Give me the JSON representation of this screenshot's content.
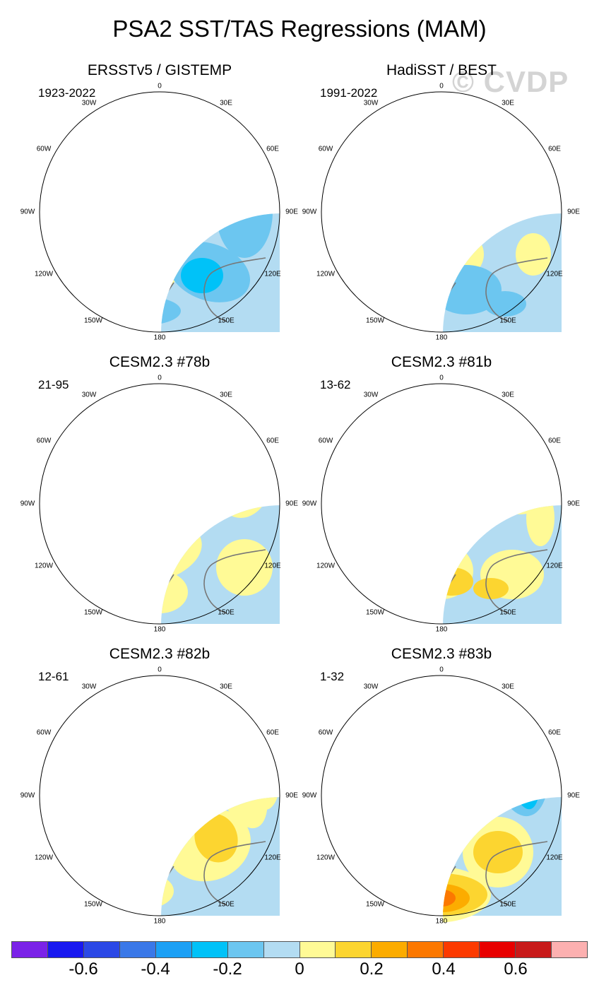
{
  "title": "PSA2 SST/TAS Regressions (MAM)",
  "watermark": "© CVDP",
  "lon_labels": {
    "top": "0",
    "n30e": "30E",
    "n60e": "60E",
    "e90": "90E",
    "s120e": "120E",
    "s150e": "150E",
    "bottom": "180",
    "s150w": "150W",
    "s120w": "120W",
    "w90": "90W",
    "n60w": "60W",
    "n30w": "30W"
  },
  "panels": [
    {
      "title": "ERSSTv5 / GISTEMP",
      "period": "1923-2022"
    },
    {
      "title": "HadiSST / BEST",
      "period": "1991-2022"
    },
    {
      "title": "CESM2.3 #78b",
      "period": "21-95"
    },
    {
      "title": "CESM2.3 #81b",
      "period": "13-62"
    },
    {
      "title": "CESM2.3 #82b",
      "period": "12-61"
    },
    {
      "title": "CESM2.3 #83b",
      "period": "1-32"
    }
  ],
  "colorbar": {
    "colors": [
      "#7b22e8",
      "#1818f0",
      "#2b48e6",
      "#3a78e8",
      "#1ca0f5",
      "#00c2f8",
      "#6cc6f0",
      "#b3dcf2",
      "#fffa96",
      "#fcd530",
      "#fcac00",
      "#fc7800",
      "#fc3a00",
      "#e80000",
      "#c81a1a",
      "#fcb0b0"
    ],
    "tick_labels": [
      "-0.6",
      "-0.4",
      "-0.2",
      "0",
      "0.2",
      "0.4",
      "0.6"
    ]
  },
  "palette": {
    "land": "#ffffff",
    "coast": "#777777",
    "zero": "#b3dcf2"
  }
}
